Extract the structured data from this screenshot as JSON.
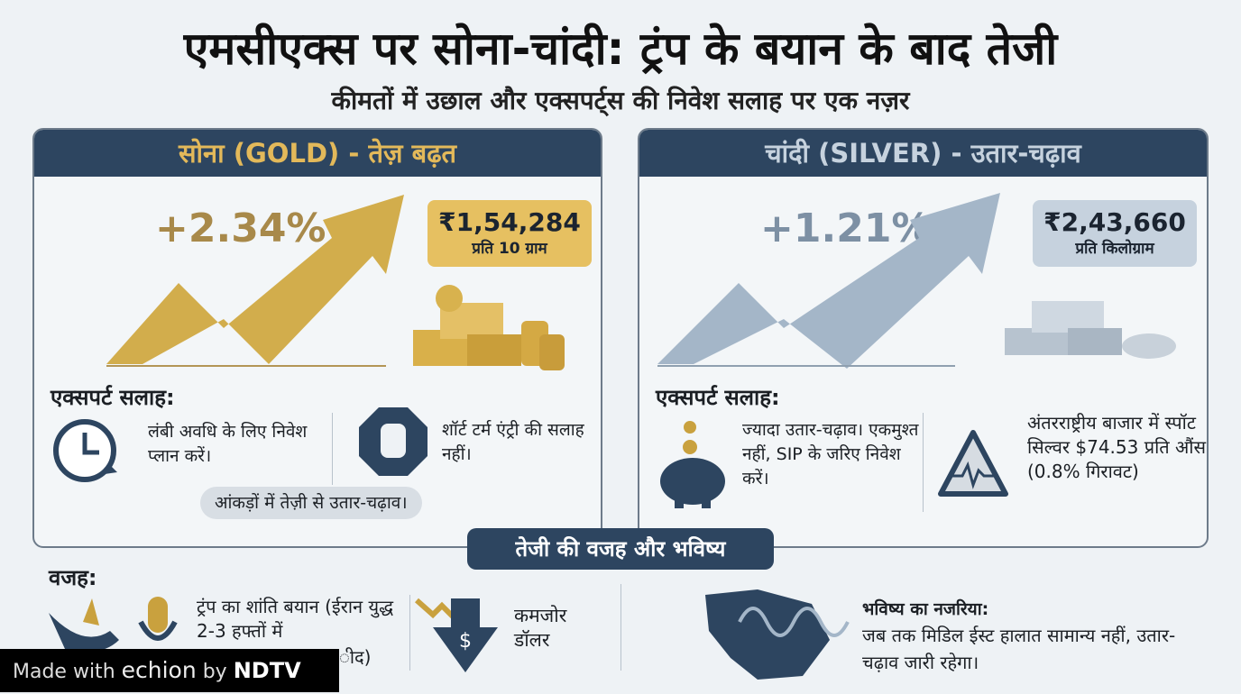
{
  "title": "एमसीएक्स पर सोना-चांदी: ट्रंप के बयान के बाद तेजी",
  "subtitle": "कीमतों में उछाल और एक्सपर्ट्स की निवेश सलाह पर एक नज़र",
  "gold": {
    "header": "सोना (GOLD) - तेज़ बढ़त",
    "change": "+2.34%",
    "price": "₹1,54,284",
    "unit": "प्रति 10 ग्राम",
    "advice_title": "एक्सपर्ट सलाह:",
    "advice1": "लंबी अवधि के लिए निवेश प्लान करें।",
    "advice2": "शॉर्ट टर्म एंट्री की सलाह नहीं।",
    "note": "आंकड़ों में तेज़ी से उतार-चढ़ाव।",
    "accent": "#c9a13e"
  },
  "silver": {
    "header": "चांदी (SILVER) - उतार-चढ़ाव",
    "change": "+1.21%",
    "price": "₹2,43,660",
    "unit": "प्रति किलोग्राम",
    "advice_title": "एक्सपर्ट सलाह:",
    "advice1": "ज्यादा उतार-चढ़ाव। एकमुश्त नहीं, SIP के जरिए निवेश करें।",
    "advice2": "अंतरराष्ट्रीय बाजार में स्पॉट सिल्वर $74.53 प्रति औंस (0.8% गिरावट)",
    "accent": "#8fa3b8"
  },
  "bottom": {
    "band": "तेजी की वजह और भविष्य",
    "reason_title": "वजह:",
    "reason1": "ट्रंप का शांति बयान (ईरान युद्ध 2-3 हफ्तों में",
    "reason1_tail": "ीद)",
    "reason2": "कमजोर डॉलर",
    "outlook_title": "भविष्य का नजरिया:",
    "outlook": "जब तक मिडिल ईस्ट हालात सामान्य नहीं, उतार-चढ़ाव जारी रहेगा।"
  },
  "watermark": {
    "made": "Made with",
    "brand": "echion",
    "by": "by",
    "ndtv": "NDTV"
  }
}
